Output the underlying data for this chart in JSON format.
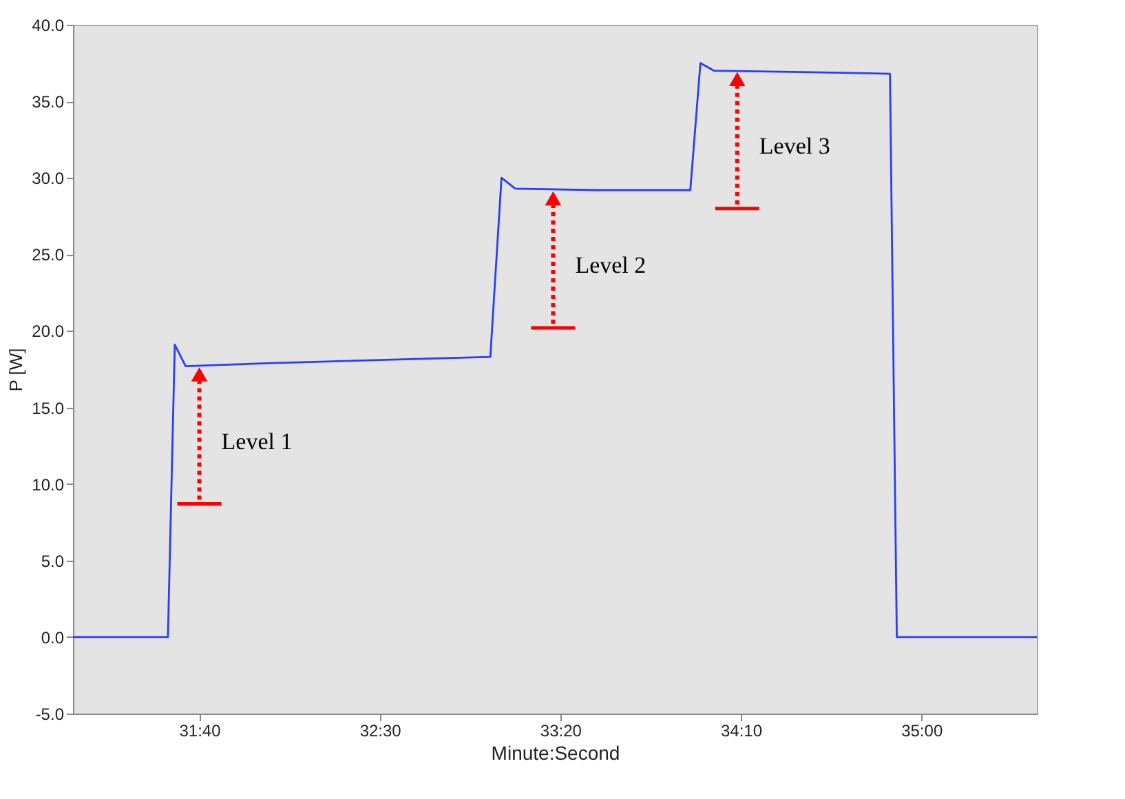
{
  "chart_data": {
    "type": "line",
    "xlabel": "Minute:Second",
    "ylabel": "P [W]",
    "x": [
      1865,
      1891.3,
      1893.2,
      1896.2,
      1920,
      1950,
      1980.6,
      1983.7,
      1987.5,
      2010,
      2036,
      2038.8,
      2042.6,
      2070,
      2091.3,
      2093.2,
      2132
    ],
    "series": [
      {
        "color": "#2b3cff",
        "values": [
          0,
          0,
          19.1,
          17.7,
          17.9,
          18.1,
          18.3,
          30.0,
          29.3,
          29.2,
          29.2,
          37.5,
          37.0,
          36.9,
          36.8,
          0,
          0
        ]
      }
    ],
    "xlim": [
      1865,
      2132
    ],
    "xticks": [
      {
        "value": 1900,
        "label": "31:40"
      },
      {
        "value": 1950,
        "label": "32:30"
      },
      {
        "value": 2000,
        "label": "33:20"
      },
      {
        "value": 2050,
        "label": "34:10"
      },
      {
        "value": 2100,
        "label": "35:00"
      }
    ],
    "ylim": [
      -5,
      40
    ],
    "yticks": [
      {
        "value": -5,
        "label": "-5.0"
      },
      {
        "value": 0,
        "label": "0.0"
      },
      {
        "value": 5,
        "label": "5.0"
      },
      {
        "value": 10,
        "label": "10.0"
      },
      {
        "value": 15,
        "label": "15.0"
      },
      {
        "value": 20,
        "label": "20.0"
      },
      {
        "value": 25,
        "label": "25.0"
      },
      {
        "value": 30,
        "label": "30.0"
      },
      {
        "value": 35,
        "label": "35.0"
      },
      {
        "value": 40,
        "label": "40.0"
      }
    ],
    "annotations": [
      {
        "text": "Level 1",
        "x": 1900,
        "y": 17.7
      },
      {
        "text": "Level 2",
        "x": 1998,
        "y": 29.2
      },
      {
        "text": "Level 3",
        "x": 2049,
        "y": 37.0
      }
    ],
    "grid": false,
    "legend": false,
    "marker": "none",
    "line_style": "solid"
  }
}
